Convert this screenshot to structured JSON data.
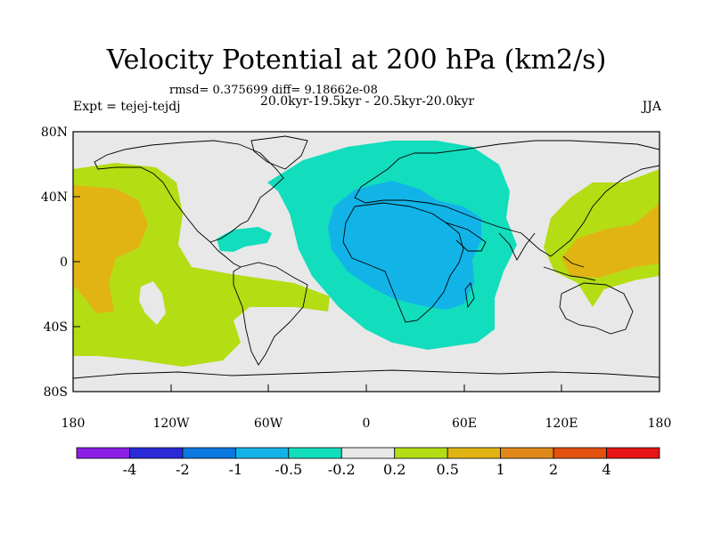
{
  "header": {
    "title": "Velocity Potential at 200 hPa (km2/s)",
    "stats": "rmsd= 0.375699 diff= 9.18662e-08",
    "experiment": "Expt = tejej-tejdj",
    "period": "20.0kyr-19.5kyr - 20.5kyr-20.0kyr",
    "season": "JJA"
  },
  "axes": {
    "x_ticks": [
      "180",
      "120W",
      "60W",
      "0",
      "60E",
      "120E",
      "180"
    ],
    "y_ticks": [
      "80N",
      "40N",
      "0",
      "40S",
      "80S"
    ]
  },
  "colorbar": {
    "colors": [
      "#8c1fe6",
      "#2a2ad8",
      "#0a78e0",
      "#12b4e8",
      "#12ddbd",
      "#e8e8e8",
      "#b4dd14",
      "#e1b414",
      "#e1881a",
      "#e3500f",
      "#e61414"
    ],
    "labels": [
      "-4",
      "-2",
      "-1",
      "-0.5",
      "-0.2",
      "0.2",
      "0.5",
      "1",
      "2",
      "4"
    ]
  },
  "fields": {
    "background": "#e8e8e8",
    "neg_weak": "#12ddbd",
    "neg_mod": "#12b4e8",
    "pos_weak": "#b4dd14",
    "pos_mod": "#e1b414"
  }
}
